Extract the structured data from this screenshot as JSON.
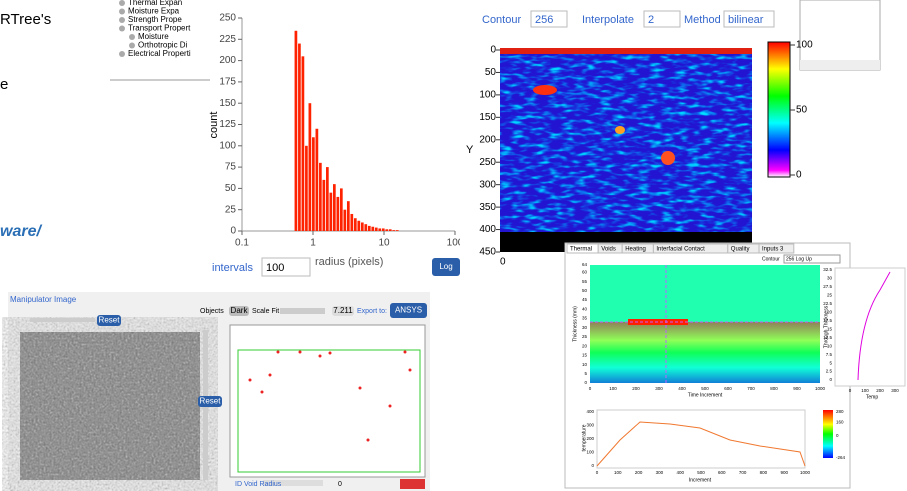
{
  "doc_text": {
    "line1": "RTree's",
    "line2": "e",
    "link": "ware/"
  },
  "tree": {
    "items": [
      "Thermal Expan",
      "Moisture Expa",
      "Strength Prope",
      "Transport Propert",
      "Moisture",
      "Orthotropic Di",
      "Electrical Properti"
    ]
  },
  "histogram": {
    "type": "histogram",
    "ylabel": "count",
    "xlabel": "radius (pixels)",
    "log_x": true,
    "color": "#ff2200",
    "xlim": [
      0.1,
      100
    ],
    "xticks": [
      0.1,
      1,
      10,
      100
    ],
    "ylim": [
      0,
      250
    ],
    "yticks": [
      0,
      25,
      50,
      75,
      100,
      125,
      150,
      175,
      200,
      225,
      250
    ],
    "bins": [
      0.55,
      0.616,
      0.69,
      0.773,
      0.865,
      0.969,
      1.085,
      1.216,
      1.361,
      1.525,
      1.708,
      1.913,
      2.142,
      2.399,
      2.687,
      3.01,
      3.371,
      3.775,
      4.228,
      4.736,
      5.304,
      5.941,
      6.654,
      7.452,
      8.346,
      9.348,
      10.47,
      11.73,
      13.13,
      14.71,
      16.47
    ],
    "counts": [
      235,
      220,
      205,
      100,
      150,
      110,
      120,
      80,
      60,
      75,
      45,
      55,
      40,
      50,
      25,
      35,
      20,
      15,
      12,
      10,
      8,
      6,
      5,
      4,
      3,
      3,
      2,
      2,
      1,
      1
    ],
    "intervals_label": "intervals",
    "intervals_value": "100",
    "log_button": "Log"
  },
  "heatmap": {
    "contour_label": "Contour",
    "contour_value": "256",
    "interpolate_label": "Interpolate",
    "interpolate_value": "2",
    "method_label": "Method",
    "method_value": "bilinear",
    "ylabel": "Y",
    "ylim": [
      0,
      450
    ],
    "yticks": [
      0,
      50,
      100,
      150,
      200,
      250,
      300,
      350,
      400,
      450
    ],
    "colorbar_lim": [
      0,
      100
    ],
    "colorbar_ticks": [
      0,
      50,
      100
    ],
    "x_first": "0"
  },
  "manipulator": {
    "title": "Manipulator Image",
    "reset": "Reset",
    "reset2": "Reset",
    "objects": "Objects",
    "dark": "Dark",
    "scale_fit": "Scale Fit",
    "value": "7.211",
    "export": "Export to:",
    "ansys": "ANSYS",
    "void_radius": "ID Void Radius",
    "void_value": "0"
  },
  "thermal": {
    "tabs": [
      "Thermal",
      "Voids",
      "Heating",
      "Interfacial Contact",
      "Quality",
      "Inputs 3"
    ],
    "contour_label": "Contour",
    "contour_value": "256 Log Up",
    "main_xlabel": "Time Increment",
    "main_ylabel": "Thickness (mm)",
    "main_xticks": [
      0,
      100,
      200,
      300,
      400,
      500,
      600,
      700,
      800,
      900,
      1000
    ],
    "main_yticks": [
      0,
      5,
      10,
      15,
      20,
      25,
      30,
      35,
      40,
      45,
      50,
      55,
      60,
      64
    ],
    "side_xlabel": "Temp",
    "side_ylabel": "Through Thickness",
    "side_xticks": [
      0,
      100,
      200,
      300
    ],
    "side_yticks": [
      0,
      2.5,
      5,
      7.5,
      10,
      12.5,
      15,
      17.5,
      20,
      22.5,
      25,
      27.5,
      30,
      32.5
    ],
    "bottom_xlabel": "Increment",
    "bottom_ylabel": "temperature",
    "bottom_xticks": [
      0,
      100,
      200,
      300,
      400,
      500,
      600,
      700,
      800,
      900,
      1000
    ],
    "bottom_yticks": [
      0,
      100,
      200,
      300,
      400
    ],
    "colorbar_ticks": [
      -264,
      0,
      160,
      280
    ]
  }
}
